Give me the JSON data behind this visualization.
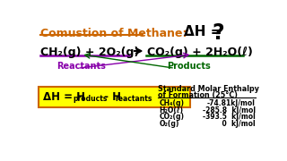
{
  "bg_color": "#ffffff",
  "title_text": "Comustion of Methane:",
  "title_color": "#cc6600",
  "dh_label": "ΔH = ",
  "dh_question": "?",
  "eq_left": "CH₂(g) + 2O₂(g)",
  "eq_right": "CO₂(g) + 2H₂O(ℓ)",
  "reactants_label": "Reactants",
  "products_label": "Products",
  "reactants_color": "#8800aa",
  "products_color": "#006600",
  "box_dh": "ΔH = H",
  "box_products_sub": "products",
  "box_minus": " - H",
  "box_reactants_sub": "reactants",
  "box_bg": "#ffff00",
  "box_border": "#cc6600",
  "table_title_line1": "Standard Molar Enthalpy",
  "table_title_line2": "of Formation (25°C)",
  "table_rows": [
    [
      "CH₄(g)",
      "-74.81kJ/mol"
    ],
    [
      "H₂O(ℓ)",
      "-285.8  kJ/mol"
    ],
    [
      "CO₂(g)",
      "-393.5  kJ/mol"
    ],
    [
      "O₂(g)",
      "    0  kJ/mol"
    ]
  ],
  "underline_left_color": "#8800aa",
  "underline_right_color": "#006600"
}
